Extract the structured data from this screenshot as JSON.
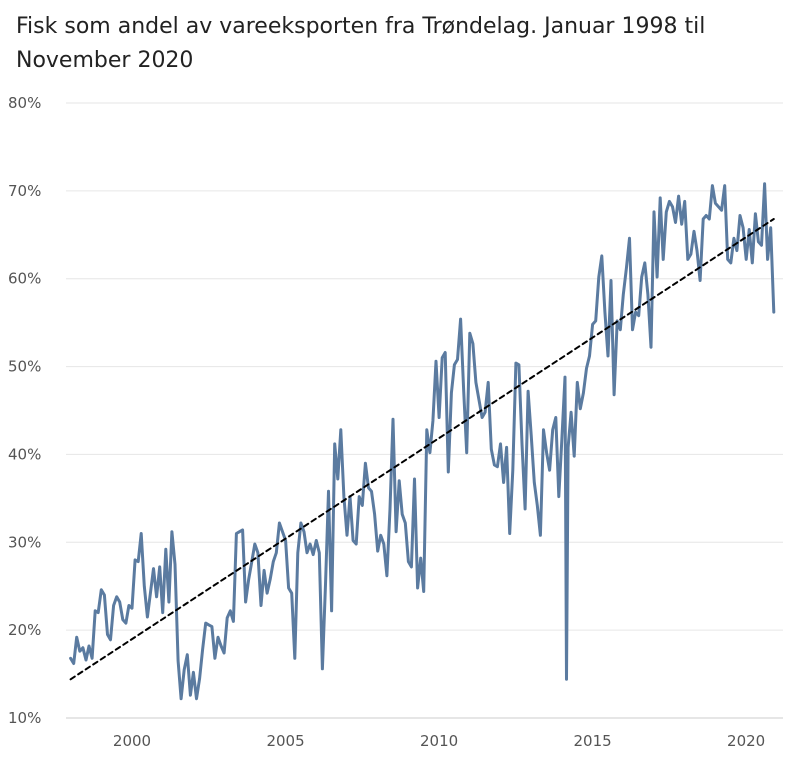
{
  "chart_data": {
    "type": "line",
    "title": "Fisk som andel av vareeksporten fra Trøndelag. Januar 1998 til November 2020",
    "xlabel": "",
    "ylabel": "",
    "x_range": [
      1997.85,
      2021.2
    ],
    "ylim": [
      10,
      80
    ],
    "y_ticks": [
      10,
      20,
      30,
      40,
      50,
      60,
      70,
      80
    ],
    "y_tick_labels": [
      "10%",
      "20%",
      "30%",
      "40%",
      "50%",
      "60%",
      "70%",
      "80%"
    ],
    "x_ticks": [
      2000,
      2005,
      2010,
      2015,
      2020
    ],
    "x_tick_labels": [
      "2000",
      "2005",
      "2010",
      "2015",
      "2020"
    ],
    "grid": "horizontal",
    "colors": {
      "series": "#5b7ba0",
      "trend": "#000000",
      "grid": "#e6e6e6",
      "axis": "#555555"
    },
    "series": [
      {
        "style": "solid",
        "points": [
          [
            1998.0,
            16.8
          ],
          [
            1998.1,
            16.2
          ],
          [
            1998.2,
            19.2
          ],
          [
            1998.3,
            17.6
          ],
          [
            1998.4,
            18.0
          ],
          [
            1998.5,
            16.6
          ],
          [
            1998.6,
            18.2
          ],
          [
            1998.7,
            16.8
          ],
          [
            1998.8,
            22.2
          ],
          [
            1998.9,
            22.0
          ],
          [
            1999.0,
            24.6
          ],
          [
            1999.1,
            24.0
          ],
          [
            1999.2,
            19.5
          ],
          [
            1999.3,
            18.9
          ],
          [
            1999.4,
            22.8
          ],
          [
            1999.5,
            23.8
          ],
          [
            1999.6,
            23.2
          ],
          [
            1999.7,
            21.2
          ],
          [
            1999.8,
            20.8
          ],
          [
            1999.9,
            22.8
          ],
          [
            2000.0,
            22.5
          ],
          [
            2000.1,
            28.0
          ],
          [
            2000.2,
            27.8
          ],
          [
            2000.3,
            31.0
          ],
          [
            2000.4,
            25.0
          ],
          [
            2000.5,
            21.5
          ],
          [
            2000.6,
            24.2
          ],
          [
            2000.7,
            27.0
          ],
          [
            2000.8,
            23.8
          ],
          [
            2000.9,
            27.2
          ],
          [
            2001.0,
            22.0
          ],
          [
            2001.1,
            29.2
          ],
          [
            2001.2,
            23.2
          ],
          [
            2001.3,
            31.2
          ],
          [
            2001.4,
            27.5
          ],
          [
            2001.5,
            16.5
          ],
          [
            2001.6,
            12.2
          ],
          [
            2001.7,
            15.5
          ],
          [
            2001.8,
            17.2
          ],
          [
            2001.9,
            12.6
          ],
          [
            2002.0,
            15.2
          ],
          [
            2002.1,
            12.2
          ],
          [
            2002.2,
            14.5
          ],
          [
            2002.3,
            17.8
          ],
          [
            2002.4,
            20.8
          ],
          [
            2002.5,
            20.6
          ],
          [
            2002.6,
            20.4
          ],
          [
            2002.7,
            16.8
          ],
          [
            2002.8,
            19.2
          ],
          [
            2002.9,
            18.2
          ],
          [
            2003.0,
            17.4
          ],
          [
            2003.1,
            21.4
          ],
          [
            2003.2,
            22.2
          ],
          [
            2003.3,
            21.0
          ],
          [
            2003.4,
            31.0
          ],
          [
            2003.5,
            31.2
          ],
          [
            2003.6,
            31.4
          ],
          [
            2003.7,
            23.2
          ],
          [
            2003.8,
            25.8
          ],
          [
            2003.9,
            27.8
          ],
          [
            2004.0,
            29.8
          ],
          [
            2004.1,
            28.8
          ],
          [
            2004.2,
            22.8
          ],
          [
            2004.3,
            26.8
          ],
          [
            2004.4,
            24.2
          ],
          [
            2004.5,
            25.8
          ],
          [
            2004.6,
            27.8
          ],
          [
            2004.7,
            28.8
          ],
          [
            2004.8,
            32.2
          ],
          [
            2004.9,
            31.2
          ],
          [
            2005.0,
            30.2
          ],
          [
            2005.1,
            24.8
          ],
          [
            2005.2,
            24.2
          ],
          [
            2005.3,
            16.8
          ],
          [
            2005.4,
            28.8
          ],
          [
            2005.5,
            32.2
          ],
          [
            2005.6,
            31.2
          ],
          [
            2005.7,
            28.8
          ],
          [
            2005.8,
            29.8
          ],
          [
            2005.9,
            28.6
          ],
          [
            2006.0,
            30.2
          ],
          [
            2006.1,
            28.8
          ],
          [
            2006.2,
            15.6
          ],
          [
            2006.3,
            25.2
          ],
          [
            2006.4,
            35.8
          ],
          [
            2006.5,
            22.2
          ],
          [
            2006.6,
            41.2
          ],
          [
            2006.7,
            37.2
          ],
          [
            2006.8,
            42.8
          ],
          [
            2006.9,
            35.2
          ],
          [
            2007.0,
            30.8
          ],
          [
            2007.1,
            35.2
          ],
          [
            2007.2,
            30.2
          ],
          [
            2007.3,
            29.8
          ],
          [
            2007.4,
            35.2
          ],
          [
            2007.5,
            34.2
          ],
          [
            2007.6,
            39.0
          ],
          [
            2007.7,
            36.2
          ],
          [
            2007.8,
            35.8
          ],
          [
            2007.9,
            33.2
          ],
          [
            2008.0,
            29.0
          ],
          [
            2008.1,
            30.8
          ],
          [
            2008.2,
            29.8
          ],
          [
            2008.3,
            26.2
          ],
          [
            2008.4,
            33.8
          ],
          [
            2008.5,
            44.0
          ],
          [
            2008.6,
            31.2
          ],
          [
            2008.7,
            37.0
          ],
          [
            2008.8,
            33.2
          ],
          [
            2008.9,
            32.2
          ],
          [
            2009.0,
            27.8
          ],
          [
            2009.1,
            27.2
          ],
          [
            2009.2,
            37.2
          ],
          [
            2009.3,
            24.8
          ],
          [
            2009.4,
            28.2
          ],
          [
            2009.5,
            24.4
          ],
          [
            2009.6,
            42.8
          ],
          [
            2009.7,
            40.2
          ],
          [
            2009.8,
            43.8
          ],
          [
            2009.9,
            50.6
          ],
          [
            2010.0,
            44.2
          ],
          [
            2010.1,
            51.0
          ],
          [
            2010.2,
            51.6
          ],
          [
            2010.3,
            38.0
          ],
          [
            2010.4,
            47.0
          ],
          [
            2010.5,
            50.2
          ],
          [
            2010.6,
            50.8
          ],
          [
            2010.7,
            55.4
          ],
          [
            2010.8,
            47.2
          ],
          [
            2010.9,
            40.2
          ],
          [
            2011.0,
            53.8
          ],
          [
            2011.1,
            52.6
          ],
          [
            2011.2,
            48.2
          ],
          [
            2011.3,
            46.2
          ],
          [
            2011.4,
            44.2
          ],
          [
            2011.5,
            44.8
          ],
          [
            2011.6,
            48.2
          ],
          [
            2011.7,
            40.6
          ],
          [
            2011.8,
            38.8
          ],
          [
            2011.9,
            38.6
          ],
          [
            2012.0,
            41.2
          ],
          [
            2012.1,
            36.8
          ],
          [
            2012.2,
            40.8
          ],
          [
            2012.3,
            31.0
          ],
          [
            2012.4,
            38.2
          ],
          [
            2012.5,
            50.4
          ],
          [
            2012.6,
            50.2
          ],
          [
            2012.7,
            41.2
          ],
          [
            2012.8,
            33.8
          ],
          [
            2012.9,
            47.2
          ],
          [
            2013.0,
            42.2
          ],
          [
            2013.1,
            36.8
          ],
          [
            2013.2,
            34.2
          ],
          [
            2013.3,
            30.8
          ],
          [
            2013.4,
            42.8
          ],
          [
            2013.5,
            40.2
          ],
          [
            2013.6,
            38.2
          ],
          [
            2013.7,
            42.8
          ],
          [
            2013.8,
            44.2
          ],
          [
            2013.9,
            35.2
          ],
          [
            2014.0,
            41.8
          ],
          [
            2014.1,
            48.8
          ],
          [
            2014.15,
            14.4
          ],
          [
            2014.2,
            40.8
          ],
          [
            2014.3,
            44.8
          ],
          [
            2014.4,
            39.8
          ],
          [
            2014.5,
            48.2
          ],
          [
            2014.6,
            45.2
          ],
          [
            2014.7,
            47.0
          ],
          [
            2014.8,
            49.8
          ],
          [
            2014.9,
            51.2
          ],
          [
            2015.0,
            54.8
          ],
          [
            2015.1,
            55.2
          ],
          [
            2015.2,
            60.2
          ],
          [
            2015.3,
            62.6
          ],
          [
            2015.4,
            56.2
          ],
          [
            2015.5,
            51.2
          ],
          [
            2015.6,
            59.8
          ],
          [
            2015.7,
            46.8
          ],
          [
            2015.8,
            55.2
          ],
          [
            2015.9,
            54.2
          ],
          [
            2016.0,
            58.2
          ],
          [
            2016.1,
            61.2
          ],
          [
            2016.2,
            64.6
          ],
          [
            2016.3,
            54.2
          ],
          [
            2016.4,
            56.2
          ],
          [
            2016.5,
            55.8
          ],
          [
            2016.6,
            60.2
          ],
          [
            2016.7,
            61.8
          ],
          [
            2016.8,
            58.2
          ],
          [
            2016.9,
            52.2
          ],
          [
            2017.0,
            67.6
          ],
          [
            2017.1,
            60.2
          ],
          [
            2017.2,
            69.2
          ],
          [
            2017.3,
            62.2
          ],
          [
            2017.4,
            67.6
          ],
          [
            2017.5,
            68.8
          ],
          [
            2017.6,
            68.2
          ],
          [
            2017.7,
            66.4
          ],
          [
            2017.8,
            69.4
          ],
          [
            2017.9,
            66.2
          ],
          [
            2018.0,
            68.8
          ],
          [
            2018.1,
            62.2
          ],
          [
            2018.2,
            62.8
          ],
          [
            2018.3,
            65.4
          ],
          [
            2018.4,
            63.2
          ],
          [
            2018.5,
            59.8
          ],
          [
            2018.6,
            66.8
          ],
          [
            2018.7,
            67.2
          ],
          [
            2018.8,
            66.8
          ],
          [
            2018.9,
            70.6
          ],
          [
            2019.0,
            68.6
          ],
          [
            2019.1,
            68.2
          ],
          [
            2019.2,
            67.8
          ],
          [
            2019.3,
            70.6
          ],
          [
            2019.4,
            62.2
          ],
          [
            2019.5,
            61.8
          ],
          [
            2019.6,
            64.6
          ],
          [
            2019.7,
            63.2
          ],
          [
            2019.8,
            67.2
          ],
          [
            2019.9,
            65.8
          ],
          [
            2020.0,
            62.2
          ],
          [
            2020.1,
            65.6
          ],
          [
            2020.2,
            61.8
          ],
          [
            2020.3,
            67.4
          ],
          [
            2020.4,
            64.2
          ],
          [
            2020.5,
            63.8
          ],
          [
            2020.6,
            70.8
          ],
          [
            2020.7,
            62.2
          ],
          [
            2020.8,
            65.8
          ],
          [
            2020.9,
            56.2
          ]
        ]
      },
      {
        "style": "dashed",
        "points": [
          [
            1998.0,
            14.4
          ],
          [
            2020.9,
            66.8
          ]
        ]
      }
    ]
  }
}
